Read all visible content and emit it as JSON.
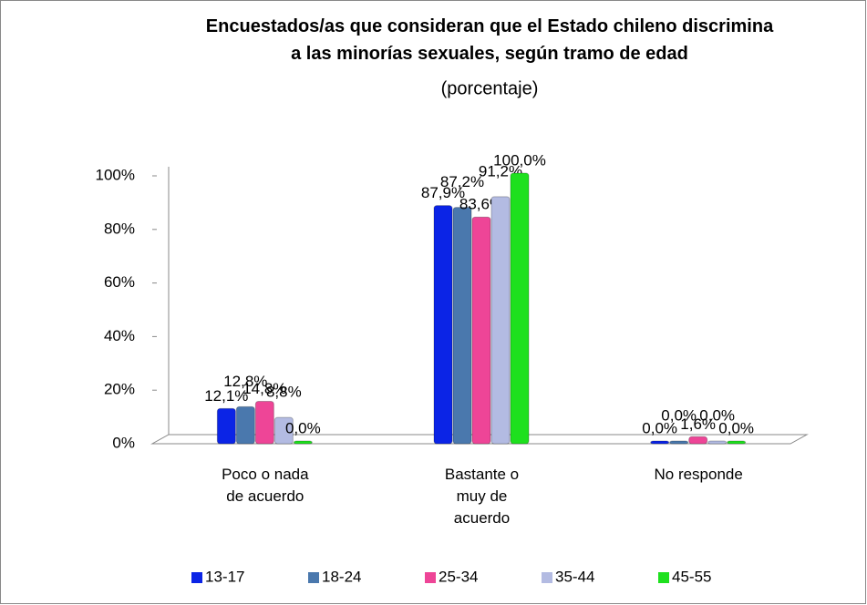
{
  "chart_data": {
    "type": "bar",
    "title": "Encuestados/as que consideran que el Estado chileno discrimina a las minorías sexuales, según tramo de edad",
    "subtitle": "(porcentaje)",
    "categories": [
      "Poco o nada de acuerdo",
      "Bastante o muy de acuerdo",
      "No responde"
    ],
    "series": [
      {
        "name": "13-17",
        "color": "#0b24e6",
        "values": [
          12.1,
          87.9,
          0
        ],
        "value_labels": [
          "12,1%",
          "87,9%",
          "0,0%"
        ]
      },
      {
        "name": "18-24",
        "color": "#4a78ad",
        "values": [
          12.8,
          87.2,
          0
        ],
        "value_labels": [
          "12,8%",
          "87,2%",
          "0,0%"
        ]
      },
      {
        "name": "25-34",
        "color": "#ee4597",
        "values": [
          14.8,
          83.6,
          1.6
        ],
        "value_labels": [
          "14,8%",
          "83,6%",
          "1,6%"
        ]
      },
      {
        "name": "35-44",
        "color": "#b3bbe2",
        "values": [
          8.8,
          91.2,
          0
        ],
        "value_labels": [
          "8,8%",
          "91,2%",
          "0,0%"
        ]
      },
      {
        "name": "45-55",
        "color": "#1ee01e",
        "values": [
          0,
          100,
          0
        ],
        "value_labels": [
          "0,0%",
          "100,0%",
          "0,0%"
        ]
      }
    ],
    "ylim": [
      0,
      100
    ],
    "yticks": [
      {
        "value": 0,
        "label": "0%"
      },
      {
        "value": 20,
        "label": "20%"
      },
      {
        "value": 40,
        "label": "40%"
      },
      {
        "value": 60,
        "label": "60%"
      },
      {
        "value": 80,
        "label": "80%"
      },
      {
        "value": 100,
        "label": "100%"
      }
    ],
    "grid": false,
    "legend": "bottom"
  }
}
